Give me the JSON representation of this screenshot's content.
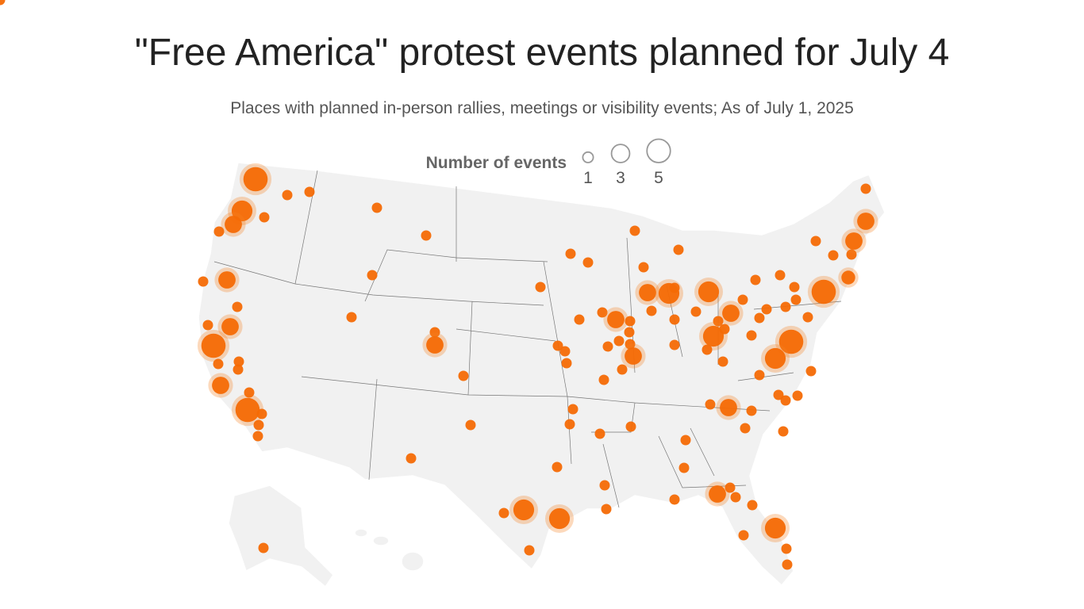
{
  "title": "\"Free America\" protest events planned for July 4",
  "subtitle": "Places with planned in-person rallies, meetings or visibility events; As of July 1, 2025",
  "legend": {
    "title": "Number of events",
    "sizes": [
      1,
      3,
      5
    ]
  },
  "events": [
    5,
    1,
    1,
    4,
    3,
    1,
    1,
    1,
    1,
    1,
    3,
    1,
    1,
    3,
    1,
    5,
    1,
    1,
    1,
    3,
    5,
    1,
    1,
    1,
    1,
    1,
    1,
    3,
    1,
    1,
    1,
    1,
    1,
    4,
    1,
    4,
    1,
    1,
    1,
    1,
    1,
    1,
    1,
    1,
    1,
    1,
    1,
    1,
    1,
    3,
    1,
    1,
    1,
    1,
    1,
    3,
    1,
    1,
    1,
    1,
    1,
    1,
    3,
    1,
    4,
    1,
    1,
    1,
    1,
    1,
    4,
    3,
    1,
    4,
    1,
    1,
    1,
    1,
    1,
    1,
    1,
    1,
    1,
    1,
    1,
    1,
    1,
    5,
    5,
    4,
    1,
    1,
    1,
    1,
    1,
    1,
    3,
    1,
    1,
    1,
    1,
    1,
    1,
    3,
    1,
    1,
    1,
    1,
    4,
    1,
    1,
    1,
    1,
    1,
    3,
    2,
    3,
    1,
    1
  ]
}
